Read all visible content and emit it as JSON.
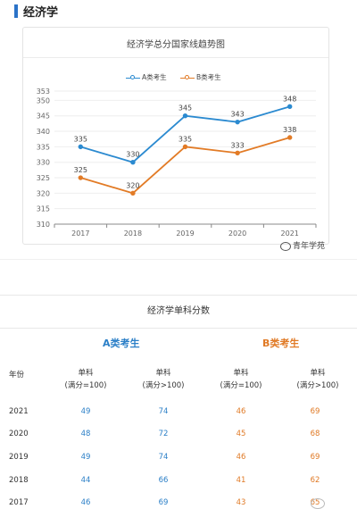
{
  "section": {
    "title": "经济学"
  },
  "chart_data": {
    "type": "line",
    "title": "经济学总分国家线趋势图",
    "categories": [
      "2017",
      "2018",
      "2019",
      "2020",
      "2021"
    ],
    "series": [
      {
        "name": "A类考生",
        "color": "#2b8ad0",
        "values": [
          335,
          330,
          345,
          343,
          348
        ]
      },
      {
        "name": "B类考生",
        "color": "#e27b26",
        "values": [
          325,
          320,
          335,
          333,
          338
        ]
      }
    ],
    "ylim": [
      310,
      353
    ],
    "yticks": [
      310,
      315,
      320,
      325,
      330,
      335,
      340,
      345,
      350,
      353
    ],
    "grid": true,
    "legend_position": "top-center"
  },
  "watermark": {
    "text": "青年学苑"
  },
  "table": {
    "title": "经济学单科分数",
    "group_a": "A类考生",
    "group_b": "B类考生",
    "year_header": "年份",
    "col_headers": [
      [
        "单科",
        "(满分=100)"
      ],
      [
        "单科",
        "(满分>100)"
      ],
      [
        "单科",
        "(满分=100)"
      ],
      [
        "单科",
        "(满分>100)"
      ]
    ],
    "rows": [
      {
        "year": "2021",
        "a1": "49",
        "a2": "74",
        "b1": "46",
        "b2": "69"
      },
      {
        "year": "2020",
        "a1": "48",
        "a2": "72",
        "b1": "45",
        "b2": "68"
      },
      {
        "year": "2019",
        "a1": "49",
        "a2": "74",
        "b1": "46",
        "b2": "69"
      },
      {
        "year": "2018",
        "a1": "44",
        "a2": "66",
        "b1": "41",
        "b2": "62"
      },
      {
        "year": "2017",
        "a1": "46",
        "a2": "69",
        "b1": "43",
        "b2": "65"
      }
    ]
  }
}
